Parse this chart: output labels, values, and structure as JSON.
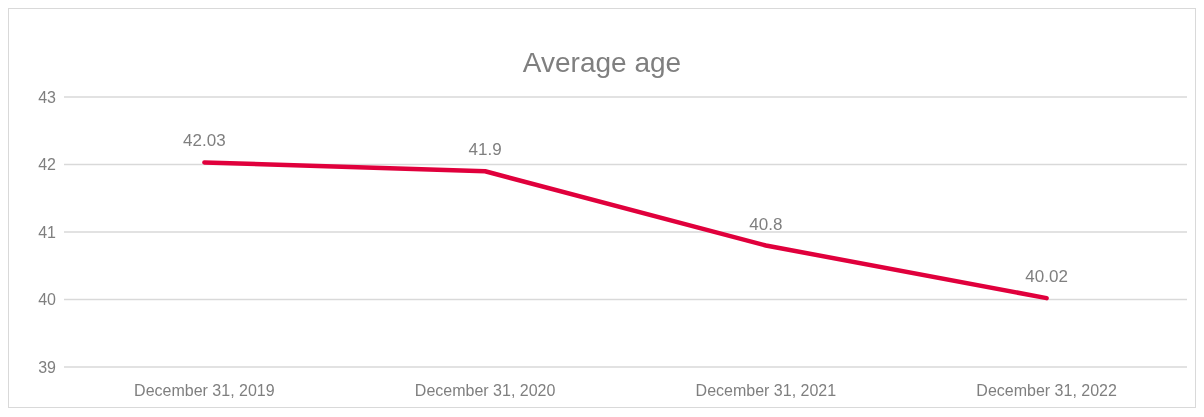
{
  "chart_data": {
    "type": "line",
    "title": "Average age",
    "categories": [
      "December 31, 2019",
      "December 31, 2020",
      "December 31, 2021",
      "December 31, 2022"
    ],
    "series": [
      {
        "color": "#e0003c",
        "values": [
          42.03,
          41.9,
          40.8,
          40.02
        ]
      }
    ],
    "ylim": [
      39,
      43
    ],
    "yticks": [
      39,
      40,
      41,
      42,
      43
    ],
    "grid": "y",
    "data_labels": true,
    "marker": "none",
    "line_style": "solid"
  }
}
